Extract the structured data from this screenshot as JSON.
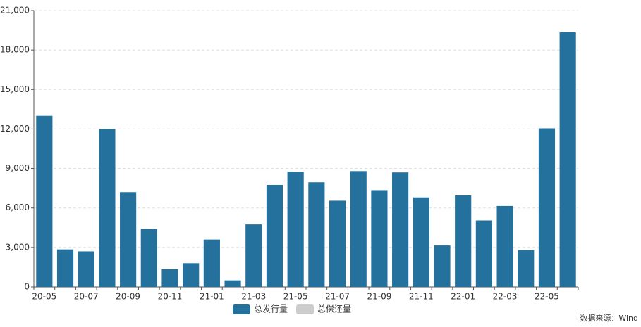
{
  "chart_data": {
    "type": "bar",
    "categories": [
      "20-05",
      null,
      "20-07",
      null,
      "20-09",
      null,
      "20-11",
      null,
      "21-01",
      null,
      "21-03",
      null,
      "21-05",
      null,
      "21-07",
      null,
      "21-09",
      null,
      "21-11",
      null,
      "22-01",
      null,
      "22-03",
      null,
      "22-05",
      null
    ],
    "series": [
      {
        "name": "总发行量",
        "color": "#24719d",
        "visible": true,
        "values": [
          13000,
          2850,
          2700,
          12000,
          7200,
          4400,
          1350,
          1800,
          3600,
          500,
          4750,
          7750,
          8750,
          7950,
          6550,
          8800,
          7350,
          8700,
          6800,
          3150,
          6950,
          5050,
          6150,
          2800,
          12050,
          19350
        ]
      },
      {
        "name": "总偿还量",
        "color": "#cccccc",
        "visible": false
      }
    ],
    "ylim": [
      0,
      21000
    ],
    "yticks": [
      0,
      {
        "value": 3000,
        "label": "3,000"
      },
      {
        "value": 6000,
        "label": "6,000"
      },
      {
        "value": 9000,
        "label": "9,000"
      },
      {
        "value": 12000,
        "label": "12,000"
      },
      {
        "value": 15000,
        "label": "15,000"
      },
      {
        "value": 18000,
        "label": "18,000"
      },
      {
        "value": 21000,
        "label": "21,000"
      }
    ],
    "grid": true,
    "source": "数据来源：Wind"
  }
}
